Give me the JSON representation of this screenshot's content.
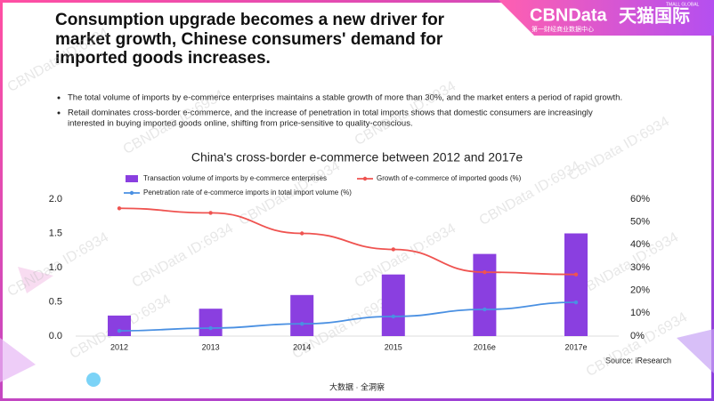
{
  "header": {
    "title_lines": [
      "Consumption upgrade becomes a new driver for",
      "market growth, Chinese consumers' demand for",
      "imported goods increases."
    ],
    "logo": "CBNData",
    "logo_sub": "第一财经商业数据中心",
    "logo2": "天猫国际",
    "logo2_sub": "TMALL GLOBAL"
  },
  "bullets": [
    [
      "The total volume of imports by e-commerce enterprises maintains a stable growth of more than 30%, and the market enters a period of rapid growth."
    ],
    [
      "Retail dominates cross-border e-commerce, and the increase of penetration in total imports shows that domestic consumers are increasingly",
      "interested in buying imported goods online, shifting from price-sensitive to quality-conscious."
    ]
  ],
  "watermark": "CBNData ID:6934",
  "chart_data": {
    "type": "bar",
    "title": "China's cross-border e-commerce between 2012 and 2017e",
    "categories": [
      "2012",
      "2013",
      "2014",
      "2015",
      "2016e",
      "2017e"
    ],
    "series": [
      {
        "name": "Transaction volume of imports by e-commerce enterprises",
        "type": "bar",
        "color": "#8a3fe0",
        "values": [
          0.3,
          0.4,
          0.6,
          0.9,
          1.2,
          1.5
        ]
      },
      {
        "name": "Growth of e-commerce of imported goods (%)",
        "type": "line",
        "axis": "y2",
        "color": "#ef5350",
        "values": [
          56,
          54,
          45,
          38,
          28,
          27
        ]
      },
      {
        "name": "Penetration rate of e-commerce imports in total import volume (%)",
        "type": "line",
        "axis": "y2",
        "color": "#4a90e2",
        "values": [
          2.3,
          3.5,
          5.4,
          8.6,
          11.7,
          14.8
        ]
      }
    ],
    "ylim": [
      0,
      2
    ],
    "yticks": [
      {
        "value": 0,
        "label": "0.0"
      },
      {
        "value": 0.5,
        "label": "0.5"
      },
      {
        "value": 1,
        "label": "1.0"
      },
      {
        "value": 1.5,
        "label": "1.5"
      },
      {
        "value": 2,
        "label": "2.0"
      }
    ],
    "y2lim": [
      0,
      60
    ],
    "y2ticks": [
      {
        "value": 0,
        "label": "0%"
      },
      {
        "value": 10,
        "label": "10%"
      },
      {
        "value": 20,
        "label": "20%"
      },
      {
        "value": 30,
        "label": "30%"
      },
      {
        "value": 40,
        "label": "40%"
      },
      {
        "value": 50,
        "label": "50%"
      },
      {
        "value": 60,
        "label": "60%"
      }
    ],
    "grid": false,
    "source": "Source: iResearch"
  },
  "footer": "大数据 · 全洞察"
}
